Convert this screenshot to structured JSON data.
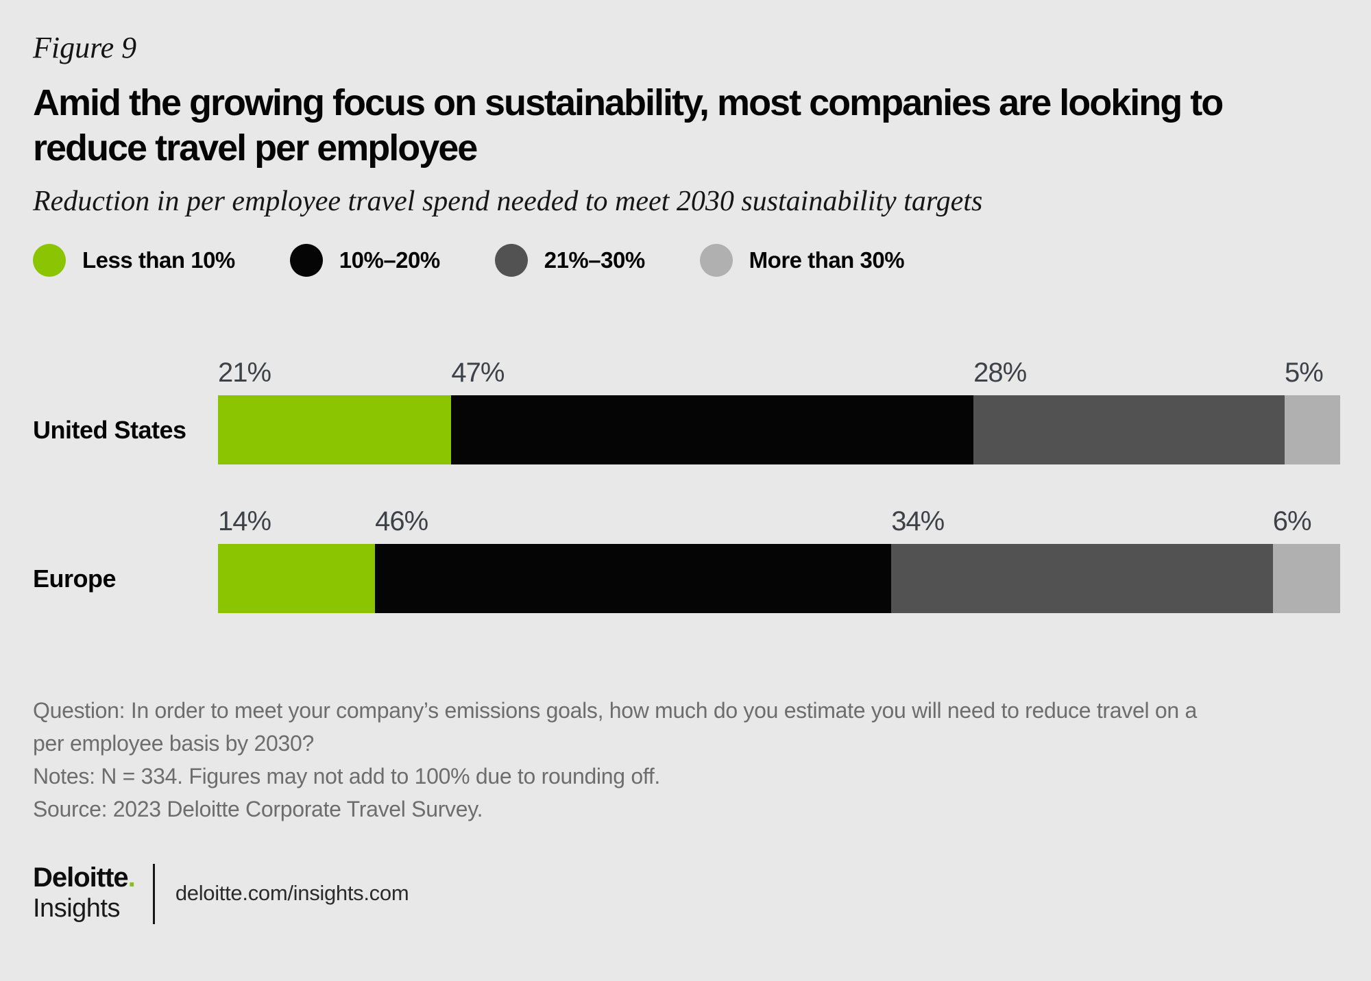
{
  "header": {
    "figure_label": "Figure 9",
    "title": "Amid the growing focus on sustainability, most companies are looking to\nreduce travel per employee",
    "subtitle": "Reduction in per employee travel spend needed to meet 2030 sustainability targets"
  },
  "colors": {
    "background": "#e8e8e8",
    "segment_green": "#8bc400",
    "segment_black": "#050505",
    "segment_dark_gray": "#525252",
    "segment_light_gray": "#b0b0b0",
    "value_label_text": "#3d4248",
    "footnote_text": "#6d6d6d",
    "brand_dot_green": "#86bc25"
  },
  "legend": {
    "items": [
      {
        "label": "Less than 10%",
        "color": "#8bc400"
      },
      {
        "label": "10%–20%",
        "color": "#050505"
      },
      {
        "label": "21%–30%",
        "color": "#525252"
      },
      {
        "label": "More than 30%",
        "color": "#b0b0b0"
      }
    ]
  },
  "chart_data": {
    "type": "bar",
    "orientation": "horizontal_stacked",
    "categories": [
      "United States",
      "Europe"
    ],
    "series": [
      {
        "name": "Less than 10%",
        "color": "#8bc400",
        "values": [
          21,
          14
        ]
      },
      {
        "name": "10%–20%",
        "color": "#050505",
        "values": [
          47,
          46
        ]
      },
      {
        "name": "21%–30%",
        "color": "#525252",
        "values": [
          28,
          34
        ]
      },
      {
        "name": "More than 30%",
        "color": "#b0b0b0",
        "values": [
          5,
          6
        ]
      }
    ],
    "value_suffix": "%",
    "xlim": [
      0,
      100
    ],
    "grid": false,
    "legend_position": "top",
    "value_labels": "above-segment-start"
  },
  "footnotes": {
    "question": "Question: In order to meet your company’s emissions goals, how much do you estimate you will need to reduce travel on a\nper employee basis by 2030?",
    "notes": "Notes: N = 334. Figures may not add to 100% due to rounding off.",
    "source": "Source: 2023 Deloitte Corporate Travel Survey."
  },
  "footer": {
    "brand_name": "Deloitte",
    "brand_dot": ".",
    "brand_sub": "Insights",
    "url": "deloitte.com/insights.com"
  }
}
